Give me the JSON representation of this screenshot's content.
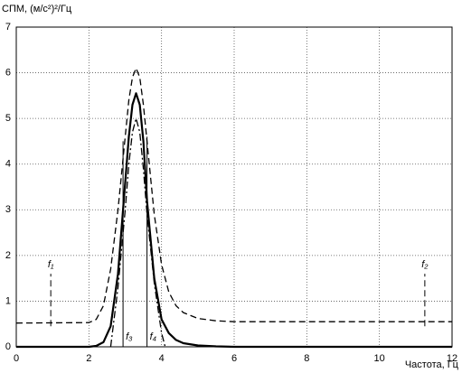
{
  "chart_data": {
    "type": "line",
    "y_label": "СПМ, (м/с²)²/Гц",
    "x_label": "Частота, Гц",
    "xlim": [
      0,
      12
    ],
    "xticks": [
      0,
      2,
      4,
      6,
      8,
      10,
      12
    ],
    "ylim": [
      0,
      7
    ],
    "yticks": [
      0,
      1,
      2,
      3,
      4,
      5,
      6,
      7
    ],
    "grid": true,
    "series": [
      {
        "color": "#000000",
        "line_style": "solid",
        "x": [
          0,
          2.0,
          2.2,
          2.4,
          2.6,
          2.8,
          3.0,
          3.1,
          3.2,
          3.3,
          3.4,
          3.5,
          3.6,
          3.8,
          4.0,
          4.2,
          4.4,
          4.6,
          5.0,
          5.5,
          6,
          12
        ],
        "values": [
          0,
          0,
          0.02,
          0.1,
          0.45,
          1.6,
          3.6,
          4.6,
          5.3,
          5.55,
          5.3,
          4.5,
          3.2,
          1.5,
          0.6,
          0.3,
          0.15,
          0.08,
          0.03,
          0.01,
          0,
          0
        ]
      },
      {
        "color": "#000000",
        "line_style": "dashed",
        "x": [
          0,
          2.0,
          2.2,
          2.4,
          2.6,
          2.8,
          3.0,
          3.1,
          3.2,
          3.3,
          3.4,
          3.5,
          3.6,
          3.8,
          4.0,
          4.2,
          4.4,
          4.6,
          5.0,
          5.5,
          6,
          12
        ],
        "values": [
          0.52,
          0.53,
          0.6,
          0.9,
          1.7,
          3.0,
          4.6,
          5.4,
          5.9,
          6.1,
          5.9,
          5.3,
          4.5,
          2.9,
          1.8,
          1.2,
          0.9,
          0.75,
          0.62,
          0.57,
          0.55,
          0.55
        ]
      },
      {
        "color": "#000000",
        "line_style": "dashdot",
        "x": [
          2.6,
          2.8,
          3.0,
          3.1,
          3.2,
          3.3,
          3.4,
          3.5,
          3.6,
          3.8,
          4.0,
          4.1
        ],
        "values": [
          0,
          1.3,
          3.0,
          4.0,
          4.7,
          5.0,
          4.7,
          3.9,
          2.9,
          1.4,
          0.3,
          0
        ]
      }
    ],
    "markers": [
      {
        "label": "f₁",
        "x": 0.95,
        "y": [
          0.45,
          1.6
        ],
        "line_style": "dashed"
      },
      {
        "label": "f₂",
        "x": 11.25,
        "y": [
          0.45,
          1.6
        ],
        "line_style": "dashed"
      },
      {
        "label": "f₃",
        "x": 2.94,
        "y": [
          0,
          4.5
        ],
        "line_style": "solid"
      },
      {
        "label": "f₄",
        "x": 3.6,
        "y": [
          0,
          4.6
        ],
        "line_style": "solid"
      }
    ]
  }
}
